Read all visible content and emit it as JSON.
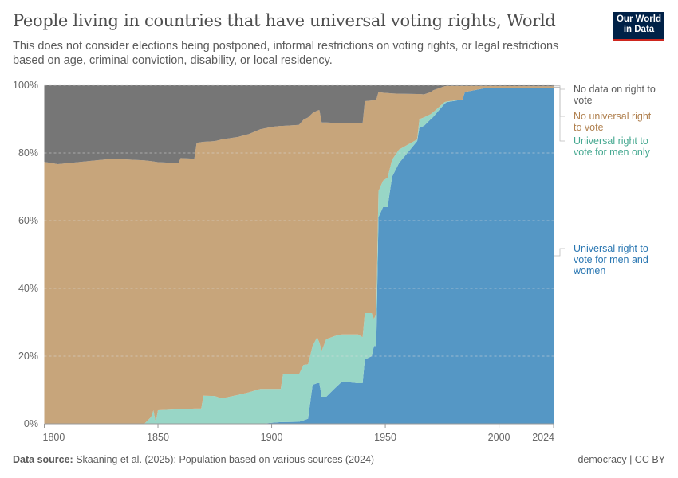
{
  "header": {
    "title": "People living in countries that have universal voting rights, World",
    "subtitle": "This does not consider elections being postponed, informal restrictions on voting rights, or legal restrictions based on age, criminal conviction, disability, or local residency.",
    "logo": "Our World in Data"
  },
  "footer": {
    "source_label": "Data source:",
    "source": "Skaaning et al. (2025); Population based on various sources (2024)",
    "license": "democracy | CC BY"
  },
  "chart_data": {
    "type": "area",
    "stacked": true,
    "ylim": [
      0,
      100
    ],
    "xlim": [
      1800,
      2024
    ],
    "y_ticks": [
      "0%",
      "20%",
      "40%",
      "60%",
      "80%",
      "100%"
    ],
    "x_ticks": [
      "1800",
      "1850",
      "1900",
      "1950",
      "2000",
      "2024"
    ],
    "grid": "horizontal dashed",
    "legend": "right",
    "x": [
      1800,
      1806,
      1830,
      1844,
      1847,
      1848,
      1849,
      1850,
      1859,
      1860,
      1866,
      1867,
      1869,
      1870,
      1875,
      1878,
      1885,
      1890,
      1895,
      1900,
      1904,
      1905,
      1912,
      1914,
      1916,
      1918,
      1920,
      1921,
      1922,
      1924,
      1928,
      1931,
      1938,
      1940,
      1941,
      1944,
      1945,
      1946,
      1947,
      1949,
      1951,
      1953,
      1956,
      1964,
      1965,
      1967,
      1970,
      1971,
      1976,
      1977,
      1984,
      1985,
      1995,
      2024
    ],
    "series": [
      {
        "name": "Universal right to vote for men and women",
        "color": "#5597c5",
        "label_color": "#2a77b2",
        "values": [
          0,
          0,
          0,
          0,
          0,
          0,
          0,
          0,
          0,
          0,
          0,
          0,
          0,
          0,
          0,
          0,
          0,
          0,
          0,
          0.3,
          0.5,
          0.5,
          0.6,
          1,
          1.5,
          11.5,
          12,
          12,
          8,
          8,
          10.6,
          12.5,
          12,
          12,
          19,
          20,
          23,
          23,
          61,
          64,
          64,
          73,
          77,
          83.5,
          87.5,
          88,
          90,
          90.6,
          94.5,
          95,
          95.8,
          98,
          99.3,
          99.3
        ]
      },
      {
        "name": "Universal right to vote for men only",
        "color": "#98d6c6",
        "label_color": "#45a890",
        "values": [
          0,
          0,
          0,
          0,
          2,
          4,
          0.5,
          4,
          4.3,
          4.3,
          4.5,
          4.5,
          4.5,
          8.3,
          8.2,
          7.5,
          8.5,
          9.3,
          10.3,
          10,
          9.8,
          14.1,
          14,
          16.4,
          16.1,
          11.5,
          13.6,
          12,
          13.6,
          17,
          15.4,
          13.9,
          14.4,
          13.6,
          13.7,
          12.7,
          8,
          9.5,
          7.7,
          7.8,
          8.7,
          5,
          4,
          0.5,
          2.5,
          2.5,
          1.5,
          1.4,
          0.5,
          0.2,
          0,
          0,
          0,
          0
        ]
      },
      {
        "name": "No universal right to vote",
        "color": "#c7a57b",
        "label_color": "#b0804f",
        "values": [
          77.4,
          76.7,
          78.3,
          77.8,
          75.6,
          73.5,
          76.9,
          73.3,
          72.7,
          74.2,
          73.8,
          78.5,
          78.7,
          75,
          75.3,
          76.5,
          76.2,
          76.3,
          76.7,
          77.4,
          77.7,
          73.4,
          73.7,
          72.4,
          72.9,
          68.8,
          66.9,
          68.7,
          67.4,
          64,
          62.9,
          62.4,
          62.3,
          63.1,
          62.6,
          62.8,
          64.6,
          63.2,
          29.3,
          26,
          25,
          19.6,
          16.5,
          13.4,
          7.4,
          6.8,
          6.5,
          6.5,
          4.7,
          4.6,
          4,
          1.8,
          0.5,
          0.4
        ]
      },
      {
        "name": "No data on right to vote",
        "color": "#767676",
        "label_color": "#5b5b5b",
        "values": [
          22.6,
          23.3,
          21.7,
          22.2,
          22.4,
          22.5,
          22.6,
          22.7,
          23,
          21.5,
          21.7,
          17,
          16.8,
          16.7,
          16.5,
          16,
          15.3,
          14.4,
          13,
          12.3,
          12,
          12,
          11.7,
          10.2,
          9.5,
          8.2,
          7.5,
          7.3,
          11,
          11,
          11.1,
          11.2,
          11.3,
          11.3,
          4.7,
          4.5,
          4.4,
          4.3,
          2,
          2.2,
          2.3,
          2.4,
          2.5,
          2.6,
          2.6,
          2.7,
          2,
          1.5,
          0.3,
          0.2,
          0.2,
          0.2,
          0.2,
          0.3
        ]
      }
    ],
    "labels": [
      {
        "series": 3,
        "lines": [
          "No data on right to",
          "vote"
        ]
      },
      {
        "series": 2,
        "lines": [
          "No universal right",
          "to vote"
        ]
      },
      {
        "series": 1,
        "lines": [
          "Universal right to",
          "vote for men only"
        ]
      },
      {
        "series": 0,
        "lines": [
          "Universal right to",
          "vote for men and",
          "women"
        ]
      }
    ]
  }
}
